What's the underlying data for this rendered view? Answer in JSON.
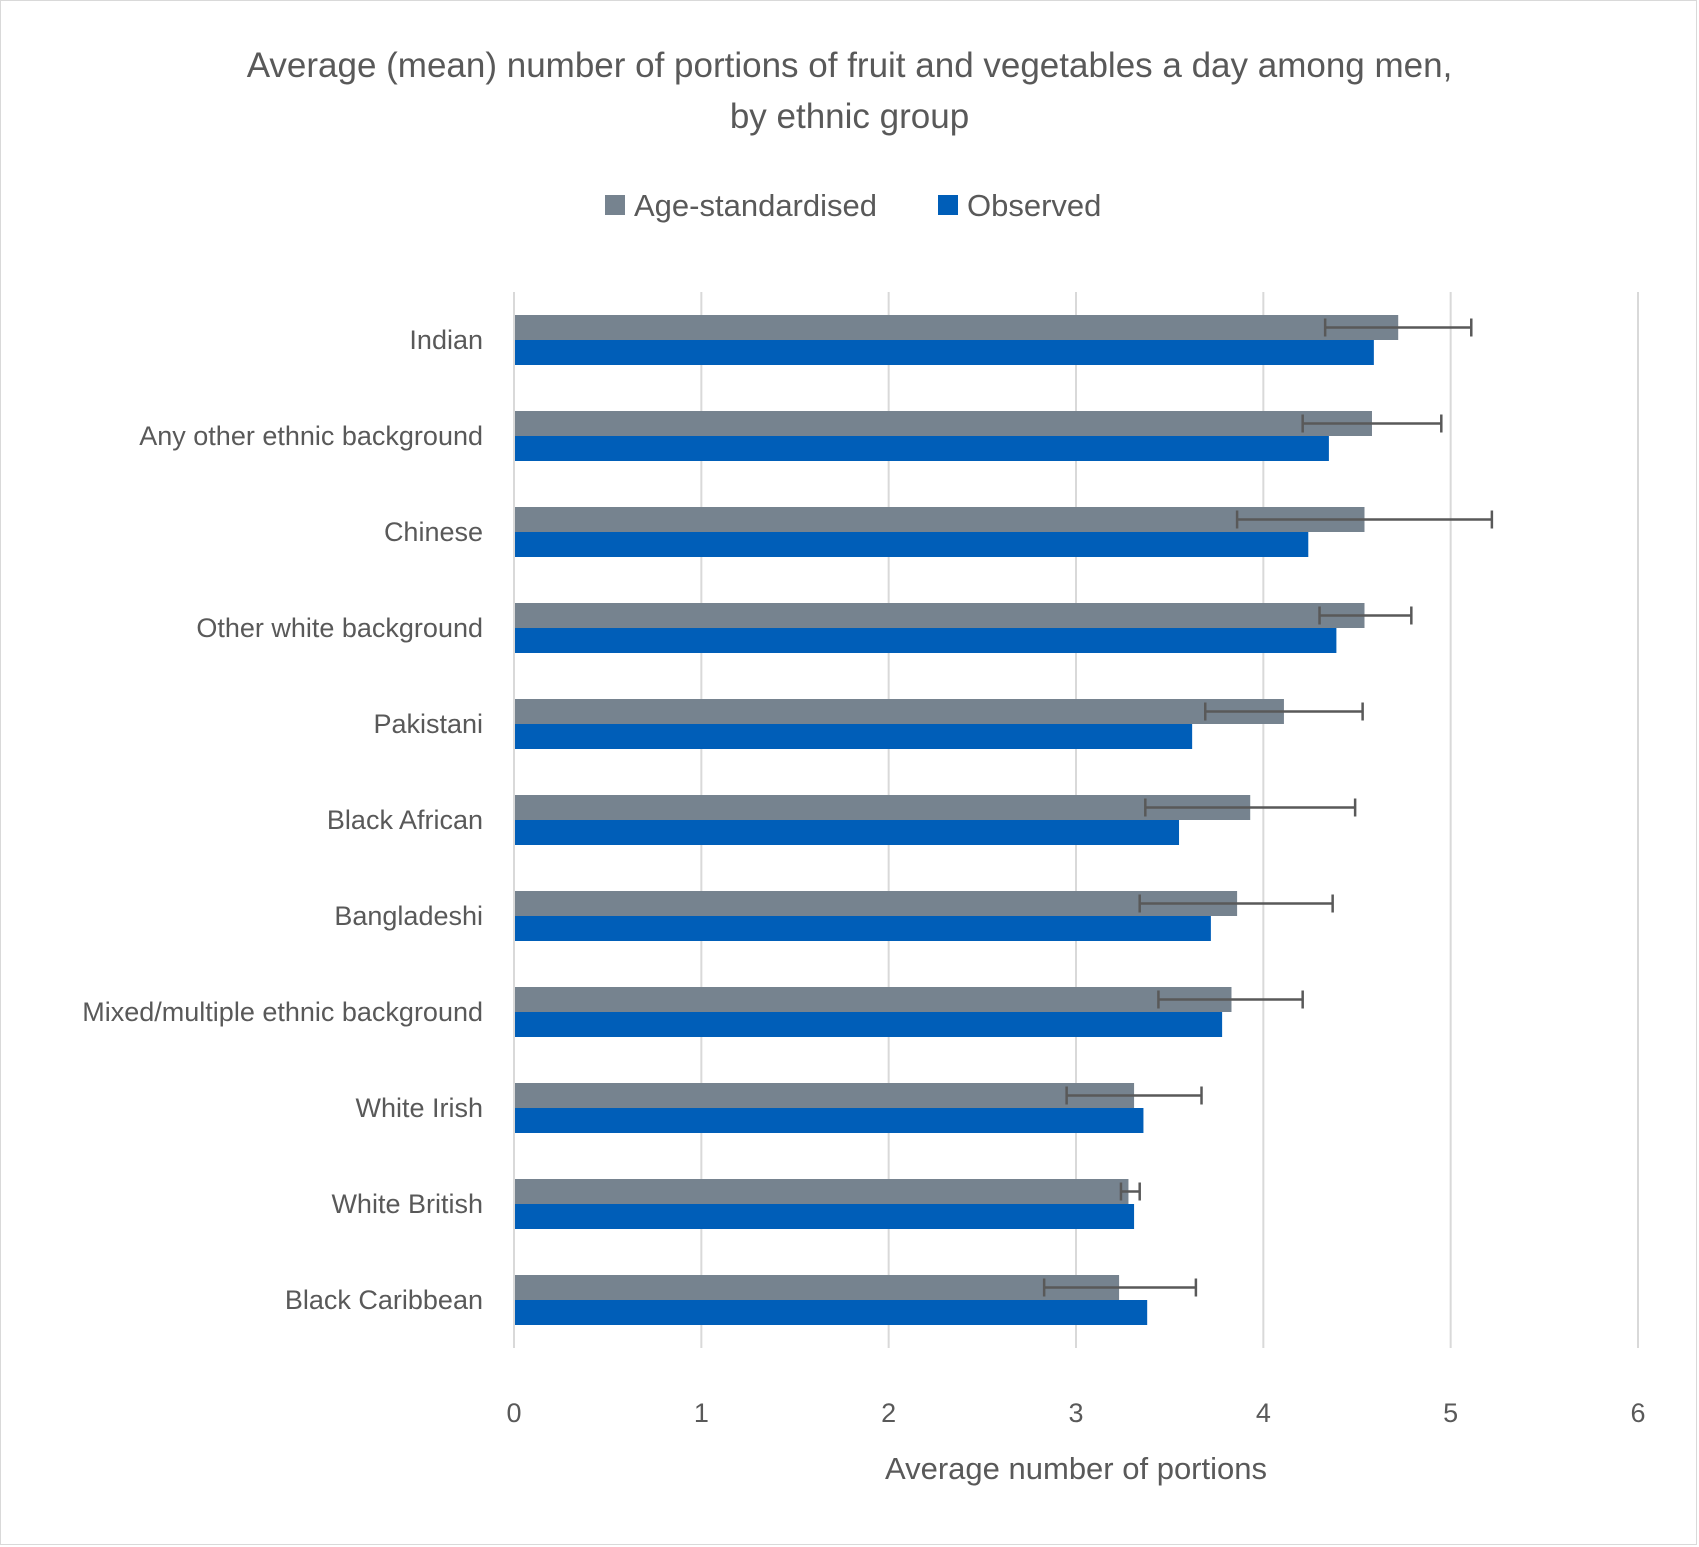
{
  "chart_data": {
    "type": "bar",
    "orientation": "horizontal",
    "title": "Average (mean) number of portions of fruit and vegetables a day among men, by ethnic group",
    "title_lines": [
      "Average (mean) number of portions of fruit and vegetables a day among men,",
      "by ethnic group"
    ],
    "xlabel": "Average number of portions",
    "ylabel": "",
    "xlim": [
      0,
      6
    ],
    "xticks": [
      0,
      1,
      2,
      3,
      4,
      5,
      6
    ],
    "grid": true,
    "legend_position": "top",
    "categories": [
      "Indian",
      "Any other ethnic background",
      "Chinese",
      "Other white background",
      "Pakistani",
      "Black African",
      "Bangladeshi",
      "Mixed/multiple ethnic background",
      "White Irish",
      "White British",
      "Black Caribbean"
    ],
    "series": [
      {
        "name": "Age-standardised",
        "color": "#76838f",
        "values": [
          4.72,
          4.58,
          4.54,
          4.54,
          4.11,
          3.93,
          3.86,
          3.83,
          3.31,
          3.28,
          3.23
        ],
        "ci_low": [
          4.33,
          4.21,
          3.86,
          4.3,
          3.69,
          3.37,
          3.34,
          3.44,
          2.95,
          3.24,
          2.83
        ],
        "ci_high": [
          5.11,
          4.95,
          5.22,
          4.79,
          4.53,
          4.49,
          4.37,
          4.21,
          3.67,
          3.34,
          3.64
        ]
      },
      {
        "name": "Observed",
        "color": "#005eb8",
        "values": [
          4.59,
          4.35,
          4.24,
          4.39,
          3.62,
          3.55,
          3.72,
          3.78,
          3.36,
          3.31,
          3.38
        ]
      }
    ]
  }
}
